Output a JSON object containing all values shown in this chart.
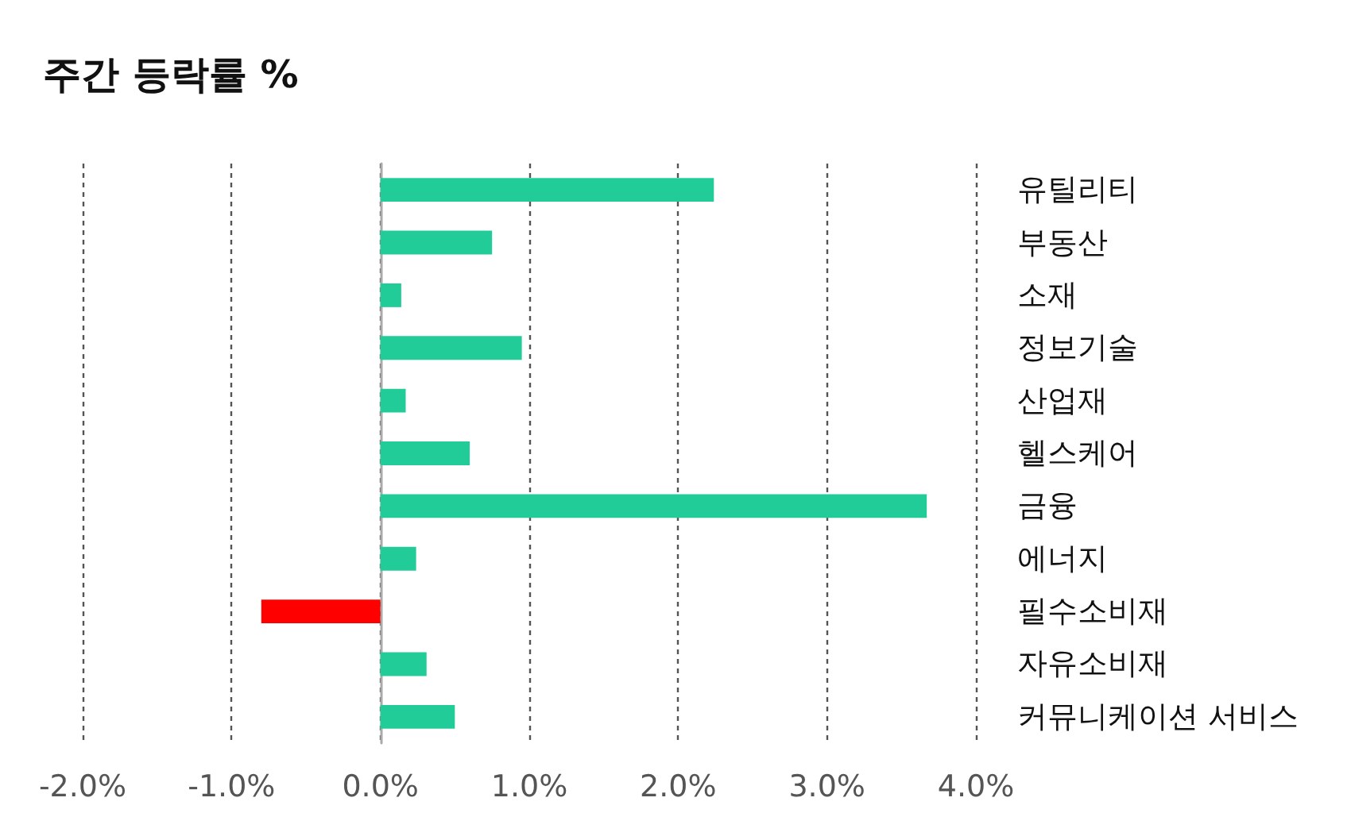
{
  "chart_data": {
    "type": "bar",
    "orientation": "horizontal",
    "title": "주간 등락률 %",
    "categories": [
      "유틸리티",
      "부동산",
      "소재",
      "정보기술",
      "산업재",
      "헬스케어",
      "금융",
      "에너지",
      "필수소비재",
      "자유소비재",
      "커뮤니케이션 서비스"
    ],
    "values": [
      2.24,
      0.75,
      0.14,
      0.95,
      0.17,
      0.6,
      3.67,
      0.24,
      -0.8,
      0.31,
      0.5
    ],
    "colors": [
      "#22cc99",
      "#22cc99",
      "#22cc99",
      "#22cc99",
      "#22cc99",
      "#22cc99",
      "#22cc99",
      "#22cc99",
      "#ff0000",
      "#22cc99",
      "#22cc99"
    ],
    "xlim": [
      -2,
      4
    ],
    "xticks": [
      {
        "value": -2,
        "label": "-2.0%"
      },
      {
        "value": -1,
        "label": "-1.0%"
      },
      {
        "value": 0,
        "label": "0.0%"
      },
      {
        "value": 1,
        "label": "1.0%"
      },
      {
        "value": 2,
        "label": "2.0%"
      },
      {
        "value": 3,
        "label": "3.0%"
      },
      {
        "value": 4,
        "label": "4.0%"
      }
    ],
    "grid": "x"
  }
}
